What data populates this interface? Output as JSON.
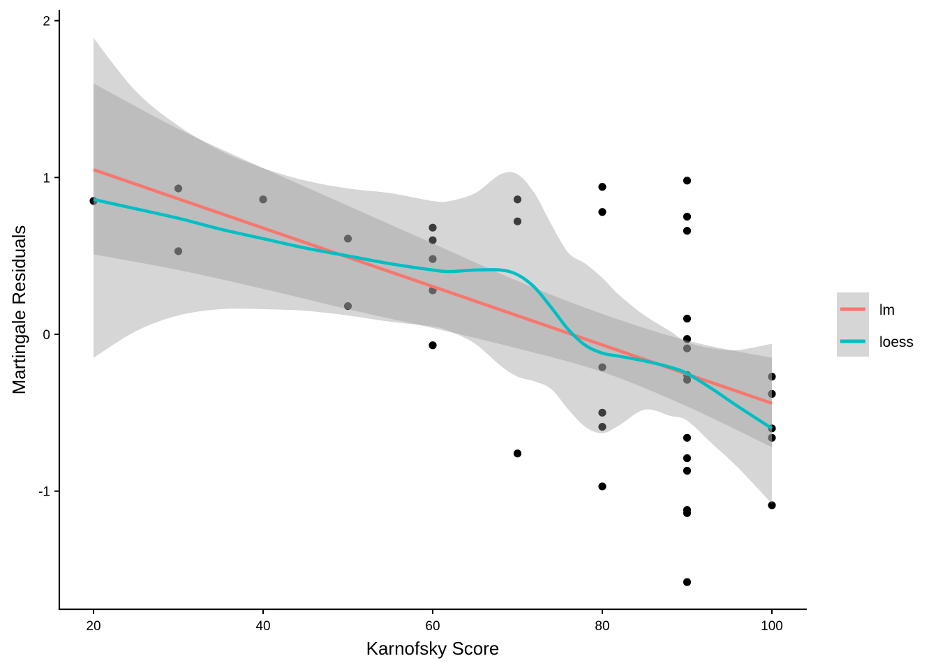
{
  "chart_data": {
    "type": "scatter",
    "title": "",
    "xlabel": "Karnofsky Score",
    "ylabel": "Martingale Residuals",
    "xlim": [
      16,
      104
    ],
    "ylim": [
      -1.7,
      2.07
    ],
    "grid": false,
    "x_ticks": [
      20,
      40,
      60,
      80,
      100
    ],
    "x_tick_labels": [
      "20",
      "40",
      "60",
      "80",
      "100"
    ],
    "y_ticks": [
      2,
      1,
      0,
      -1
    ],
    "y_tick_labels": [
      "2",
      "1",
      "0",
      "-1"
    ],
    "legend_position": "right",
    "legend": [
      {
        "label": "lm",
        "color": "#F8766D"
      },
      {
        "label": "loess",
        "color": "#00BFC4"
      }
    ],
    "points": [
      {
        "x": 20,
        "y": 0.85
      },
      {
        "x": 30,
        "y": 0.93
      },
      {
        "x": 30,
        "y": 0.53
      },
      {
        "x": 40,
        "y": 0.86
      },
      {
        "x": 50,
        "y": 0.61
      },
      {
        "x": 50,
        "y": 0.18
      },
      {
        "x": 60,
        "y": 0.68
      },
      {
        "x": 60,
        "y": 0.6
      },
      {
        "x": 60,
        "y": 0.48
      },
      {
        "x": 60,
        "y": 0.28
      },
      {
        "x": 60,
        "y": -0.07
      },
      {
        "x": 70,
        "y": 0.86
      },
      {
        "x": 70,
        "y": 0.72
      },
      {
        "x": 70,
        "y": -0.76
      },
      {
        "x": 80,
        "y": 0.94
      },
      {
        "x": 80,
        "y": 0.78
      },
      {
        "x": 80,
        "y": -0.21
      },
      {
        "x": 80,
        "y": -0.5
      },
      {
        "x": 80,
        "y": -0.59
      },
      {
        "x": 80,
        "y": -0.97
      },
      {
        "x": 90,
        "y": 0.98
      },
      {
        "x": 90,
        "y": 0.75
      },
      {
        "x": 90,
        "y": 0.66
      },
      {
        "x": 90,
        "y": 0.1
      },
      {
        "x": 90,
        "y": -0.03
      },
      {
        "x": 90,
        "y": -0.09
      },
      {
        "x": 90,
        "y": -0.26
      },
      {
        "x": 90,
        "y": -0.29
      },
      {
        "x": 90,
        "y": -0.66
      },
      {
        "x": 90,
        "y": -0.79
      },
      {
        "x": 90,
        "y": -0.87
      },
      {
        "x": 90,
        "y": -1.12
      },
      {
        "x": 90,
        "y": -1.14
      },
      {
        "x": 90,
        "y": -1.58
      },
      {
        "x": 100,
        "y": -0.27
      },
      {
        "x": 100,
        "y": -0.38
      },
      {
        "x": 100,
        "y": -0.6
      },
      {
        "x": 100,
        "y": -0.66
      },
      {
        "x": 100,
        "y": -1.09
      }
    ],
    "series": [
      {
        "name": "lm",
        "color": "#F8766D",
        "x": [
          20,
          100
        ],
        "y": [
          1.05,
          -0.44
        ],
        "ci_lower": [
          0.51,
          -0.72
        ],
        "ci_upper": [
          1.6,
          -0.15
        ],
        "ci_x": [
          20,
          30,
          40,
          50,
          60,
          70,
          80,
          90,
          100
        ],
        "ci_lower_full": [
          0.51,
          0.41,
          0.29,
          0.16,
          0.04,
          -0.09,
          -0.24,
          -0.46,
          -0.72
        ],
        "ci_upper_full": [
          1.6,
          1.31,
          1.06,
          0.82,
          0.58,
          0.34,
          0.13,
          -0.04,
          -0.15
        ]
      },
      {
        "name": "loess",
        "color": "#00BFC4",
        "x": [
          20,
          25,
          30,
          35,
          40,
          45,
          50,
          55,
          60,
          62,
          65,
          68,
          70,
          72,
          74,
          76,
          78,
          80,
          82,
          85,
          88,
          90,
          93,
          96,
          100
        ],
        "y": [
          0.86,
          0.8,
          0.74,
          0.67,
          0.61,
          0.55,
          0.5,
          0.45,
          0.41,
          0.4,
          0.41,
          0.41,
          0.38,
          0.3,
          0.17,
          0.03,
          -0.07,
          -0.12,
          -0.14,
          -0.17,
          -0.21,
          -0.25,
          -0.35,
          -0.46,
          -0.6
        ],
        "ci_lower": [
          -0.15,
          0.02,
          0.12,
          0.16,
          0.16,
          0.15,
          0.12,
          0.08,
          0.05,
          0.02,
          -0.06,
          -0.2,
          -0.27,
          -0.3,
          -0.35,
          -0.48,
          -0.59,
          -0.63,
          -0.58,
          -0.48,
          -0.52,
          -0.55,
          -0.7,
          -0.85,
          -1.08
        ],
        "ci_upper": [
          1.89,
          1.55,
          1.33,
          1.17,
          1.06,
          0.98,
          0.93,
          0.9,
          0.85,
          0.85,
          0.9,
          1.02,
          1.02,
          0.9,
          0.7,
          0.52,
          0.45,
          0.36,
          0.25,
          0.12,
          0.02,
          -0.05,
          -0.09,
          -0.1,
          -0.06
        ]
      }
    ]
  }
}
